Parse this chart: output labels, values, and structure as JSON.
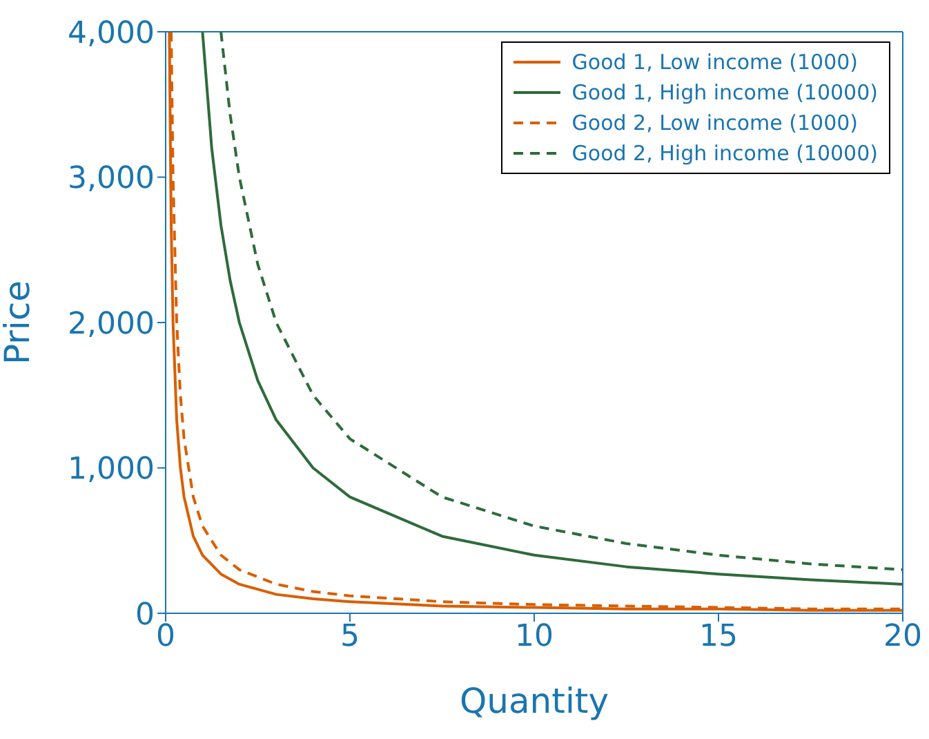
{
  "chart_data": {
    "type": "line",
    "xlabel": "Quantity",
    "ylabel": "Price",
    "xlim": [
      0,
      20
    ],
    "ylim": [
      0,
      4000
    ],
    "xticks": [
      0,
      5,
      10,
      15,
      20
    ],
    "yticks": [
      0,
      {
        "value": 1000,
        "label": "1,000"
      },
      {
        "value": 2000,
        "label": "2,000"
      },
      {
        "value": 3000,
        "label": "3,000"
      },
      {
        "value": 4000,
        "label": "4,000"
      }
    ],
    "grid": false,
    "legend": "top right",
    "marker": "none",
    "series": [
      {
        "name": "Good 1, Low income (1000)",
        "color": "#d95f02",
        "line_style": "solid",
        "x": [
          0.1,
          0.15,
          0.2,
          0.3,
          0.4,
          0.5,
          0.75,
          1,
          1.5,
          2,
          3,
          4,
          5,
          7.5,
          10,
          12.5,
          15,
          17.5,
          20
        ],
        "values": [
          4000,
          2670,
          2000,
          1330,
          1000,
          800,
          530,
          400,
          270,
          200,
          130,
          100,
          80,
          50,
          40,
          30,
          30,
          20,
          20
        ]
      },
      {
        "name": "Good 1, High income (10000)",
        "color": "#2e6b3a",
        "line_style": "solid",
        "x": [
          1,
          1.25,
          1.5,
          1.75,
          2,
          2.5,
          3,
          4,
          5,
          7.5,
          10,
          12.5,
          15,
          17.5,
          20
        ],
        "values": [
          4000,
          3200,
          2670,
          2290,
          2000,
          1600,
          1330,
          1000,
          800,
          530,
          400,
          320,
          270,
          230,
          200
        ]
      },
      {
        "name": "Good 2, Low income (1000)",
        "color": "#d95f02",
        "line_style": "dashed",
        "x": [
          0.15,
          0.2,
          0.3,
          0.4,
          0.5,
          0.75,
          1,
          1.5,
          2,
          3,
          4,
          5,
          7.5,
          10,
          12.5,
          15,
          17.5,
          20
        ],
        "values": [
          4000,
          3000,
          2000,
          1500,
          1200,
          800,
          600,
          400,
          300,
          200,
          150,
          120,
          80,
          60,
          50,
          40,
          30,
          30
        ]
      },
      {
        "name": "Good 2, High income (10000)",
        "color": "#2e6b3a",
        "line_style": "dashed",
        "x": [
          1.5,
          1.75,
          2,
          2.5,
          3,
          4,
          5,
          7.5,
          10,
          12.5,
          15,
          17.5,
          20
        ],
        "values": [
          4000,
          3430,
          3000,
          2400,
          2000,
          1500,
          1200,
          800,
          600,
          480,
          400,
          340,
          300
        ]
      }
    ]
  }
}
